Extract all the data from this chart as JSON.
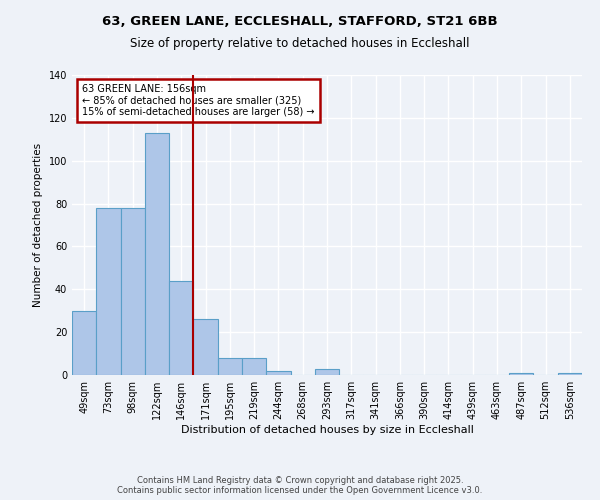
{
  "title1": "63, GREEN LANE, ECCLESHALL, STAFFORD, ST21 6BB",
  "title2": "Size of property relative to detached houses in Eccleshall",
  "xlabel": "Distribution of detached houses by size in Eccleshall",
  "ylabel": "Number of detached properties",
  "footer": "Contains HM Land Registry data © Crown copyright and database right 2025.\nContains public sector information licensed under the Open Government Licence v3.0.",
  "bin_labels": [
    "49sqm",
    "73sqm",
    "98sqm",
    "122sqm",
    "146sqm",
    "171sqm",
    "195sqm",
    "219sqm",
    "244sqm",
    "268sqm",
    "293sqm",
    "317sqm",
    "341sqm",
    "366sqm",
    "390sqm",
    "414sqm",
    "439sqm",
    "463sqm",
    "487sqm",
    "512sqm",
    "536sqm"
  ],
  "bar_values": [
    30,
    78,
    78,
    113,
    44,
    26,
    8,
    8,
    2,
    0,
    3,
    0,
    0,
    0,
    0,
    0,
    0,
    0,
    1,
    0,
    1
  ],
  "bar_color": "#aec6e8",
  "bar_edge_color": "#5a9fc8",
  "background_color": "#eef2f8",
  "grid_color": "#ffffff",
  "annotation_box_color": "#ffffff",
  "annotation_border_color": "#aa0000",
  "vline_color": "#aa0000",
  "annotation_title": "63 GREEN LANE: 156sqm",
  "annotation_line1": "← 85% of detached houses are smaller (325)",
  "annotation_line2": "15% of semi-detached houses are larger (58) →",
  "ylim": [
    0,
    140
  ],
  "yticks": [
    0,
    20,
    40,
    60,
    80,
    100,
    120,
    140
  ]
}
